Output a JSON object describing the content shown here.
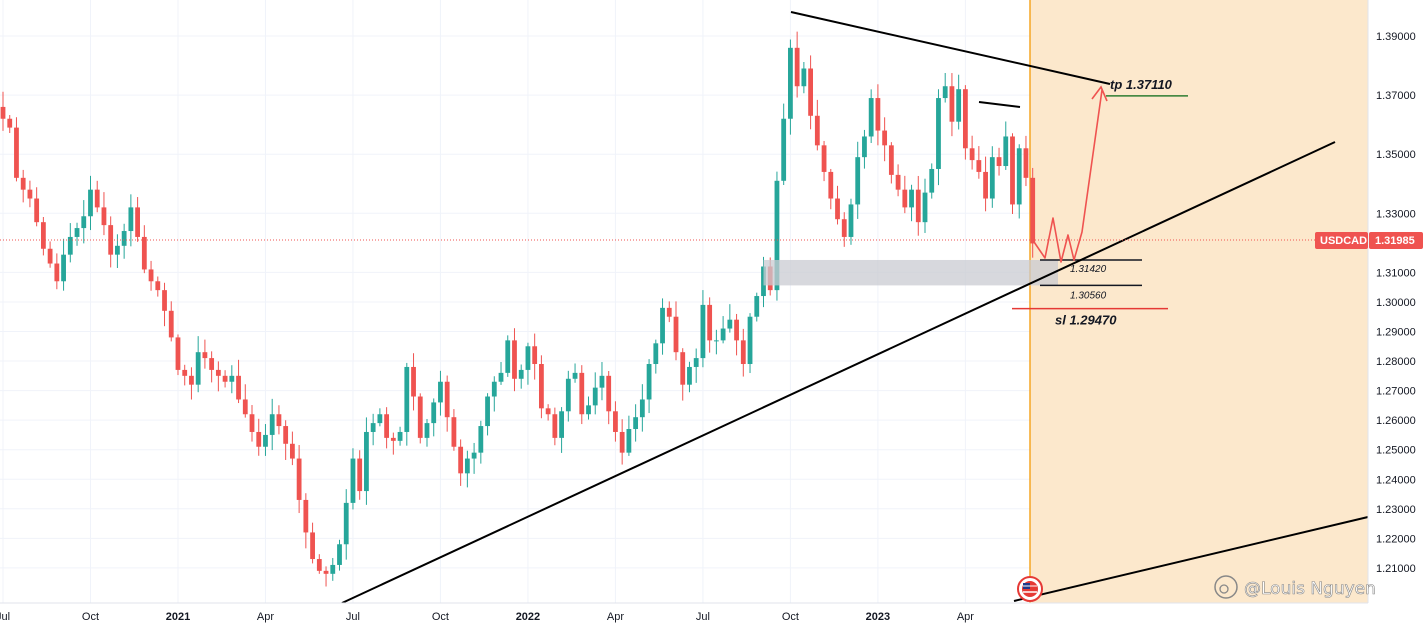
{
  "chart_data": {
    "type": "candlestick",
    "symbol": "USDCAD",
    "last_price": "1.31985",
    "y_ticks": [
      "1.39000",
      "1.37000",
      "1.35000",
      "1.33000",
      "1.31000",
      "1.30000",
      "1.29000",
      "1.28000",
      "1.27000",
      "1.26000",
      "1.25000",
      "1.24000",
      "1.23000",
      "1.22000",
      "1.21000"
    ],
    "y_tick_values": [
      1.39,
      1.37,
      1.35,
      1.33,
      1.31,
      1.3,
      1.29,
      1.28,
      1.27,
      1.26,
      1.25,
      1.24,
      1.23,
      1.22,
      1.21
    ],
    "x_ticks": [
      {
        "label": "Jul",
        "bar": 0,
        "bold": false
      },
      {
        "label": "Oct",
        "bar": 13,
        "bold": false
      },
      {
        "label": "2021",
        "bar": 26,
        "bold": true
      },
      {
        "label": "Apr",
        "bar": 39,
        "bold": false
      },
      {
        "label": "Jul",
        "bar": 52,
        "bold": false
      },
      {
        "label": "Oct",
        "bar": 65,
        "bold": false
      },
      {
        "label": "2022",
        "bar": 78,
        "bold": true
      },
      {
        "label": "Apr",
        "bar": 91,
        "bold": false
      },
      {
        "label": "Jul",
        "bar": 104,
        "bold": false
      },
      {
        "label": "Oct",
        "bar": 117,
        "bold": false
      },
      {
        "label": "2023",
        "bar": 130,
        "bold": true
      },
      {
        "label": "Apr",
        "bar": 143,
        "bold": false
      }
    ],
    "closes": [
      1.362,
      1.359,
      1.342,
      1.338,
      1.335,
      1.327,
      1.318,
      1.313,
      1.307,
      1.316,
      1.322,
      1.325,
      1.329,
      1.338,
      1.332,
      1.326,
      1.316,
      1.319,
      1.324,
      1.332,
      1.322,
      1.311,
      1.307,
      1.304,
      1.297,
      1.288,
      1.277,
      1.275,
      1.272,
      1.283,
      1.281,
      1.277,
      1.275,
      1.273,
      1.275,
      1.267,
      1.262,
      1.256,
      1.251,
      1.255,
      1.262,
      1.258,
      1.252,
      1.247,
      1.233,
      1.222,
      1.213,
      1.209,
      1.208,
      1.211,
      1.218,
      1.232,
      1.247,
      1.236,
      1.256,
      1.259,
      1.262,
      1.254,
      1.253,
      1.256,
      1.278,
      1.268,
      1.254,
      1.259,
      1.266,
      1.273,
      1.261,
      1.251,
      1.242,
      1.247,
      1.249,
      1.258,
      1.268,
      1.273,
      1.276,
      1.287,
      1.274,
      1.277,
      1.285,
      1.279,
      1.264,
      1.262,
      1.254,
      1.263,
      1.274,
      1.276,
      1.262,
      1.265,
      1.271,
      1.275,
      1.263,
      1.256,
      1.249,
      1.257,
      1.261,
      1.267,
      1.279,
      1.286,
      1.298,
      1.295,
      1.283,
      1.272,
      1.278,
      1.281,
      1.299,
      1.287,
      1.287,
      1.291,
      1.294,
      1.287,
      1.279,
      1.295,
      1.302,
      1.312,
      1.304,
      1.341,
      1.362,
      1.386,
      1.373,
      1.379,
      1.363,
      1.353,
      1.344,
      1.335,
      1.328,
      1.322,
      1.333,
      1.349,
      1.356,
      1.369,
      1.358,
      1.353,
      1.343,
      1.338,
      1.332,
      1.338,
      1.327,
      1.337,
      1.345,
      1.369,
      1.373,
      1.361,
      1.372,
      1.352,
      1.348,
      1.344,
      1.335,
      1.349,
      1.346,
      1.356,
      1.333,
      1.352,
      1.342,
      1.3198
    ],
    "drawings": {
      "tp_label": "tp 1.37110",
      "sl_label": "sl 1.29470",
      "zone_top_label": "1.31420",
      "zone_bottom_label": "1.30560",
      "tp_value": 1.3711,
      "sl_value": 1.2947,
      "zone_top_value": 1.3142,
      "zone_bottom_value": 1.3056
    },
    "colors": {
      "up": "#26a69a",
      "down": "#ef5350",
      "projection_bg": "#fce8cc",
      "projection_edge": "#f5a623",
      "tp_line": "#2e7d32",
      "sl_line": "#e53935",
      "projection_arrow": "#ef5350",
      "price_tag": "#ef5350"
    }
  },
  "watermark": {
    "text": "@Louis Nguyen",
    "icon": "tradingview-weibo-icon"
  },
  "flag": {
    "icon": "us-ca-flag-icon"
  }
}
